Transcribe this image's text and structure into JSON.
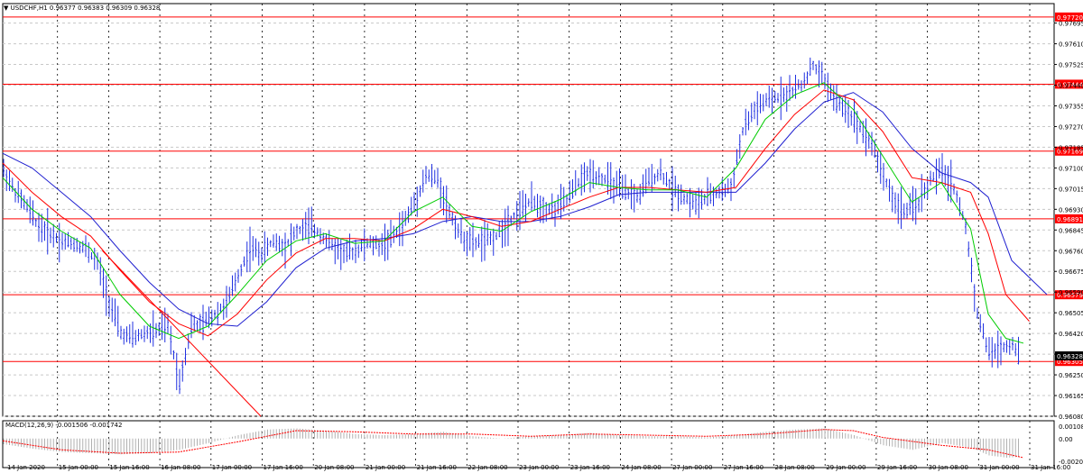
{
  "window": {
    "header_text": "▼ USDCHF,H1  0.96377 0.96383 0.96309 0.96328",
    "macd_header": "MACD(12,26,9) -0.001506 -0.001742"
  },
  "colors": {
    "background": "#ffffff",
    "grid": "#c8c8c8",
    "vgrid_major": "#000000",
    "price_bars": "#2030e0",
    "level_line": "#ff0000",
    "level_label_bg": "#ff0000",
    "ma_fast": "#00cc00",
    "ma_mid": "#ff0000",
    "ma_slow": "#2020d0",
    "current_price_bg": "#000000",
    "macd_hist": "#b0b0b0",
    "macd_signal": "#ff0000"
  },
  "chart_data": {
    "type": "line",
    "symbol": "USDCHF",
    "timeframe": "H1",
    "ylim": [
      0.9608,
      0.97775
    ],
    "y_ticks": [
      "0.97695",
      "0.97610",
      "0.97525",
      "0.97440",
      "0.97355",
      "0.97270",
      "0.97185",
      "0.97100",
      "0.97015",
      "0.96930",
      "0.96845",
      "0.96760",
      "0.96675",
      "0.96590",
      "0.96505",
      "0.96420",
      "0.96335",
      "0.96250",
      "0.96165",
      "0.96080"
    ],
    "x_ticks": [
      "14 Jan 2020",
      "15 Jan 00:00",
      "15 Jan 16:00",
      "16 Jan 08:00",
      "17 Jan 00:00",
      "17 Jan 16:00",
      "20 Jan 08:00",
      "21 Jan 00:00",
      "21 Jan 16:00",
      "22 Jan 08:00",
      "23 Jan 00:00",
      "23 Jan 16:00",
      "24 Jan 08:00",
      "27 Jan 00:00",
      "27 Jan 16:00",
      "28 Jan 08:00",
      "29 Jan 00:00",
      "29 Jan 16:00",
      "30 Jan 08:00",
      "31 Jan 00:00",
      "31 Jan 16:00"
    ],
    "levels": [
      {
        "label": "0.97444",
        "value": 0.97444
      },
      {
        "label": "0.97169",
        "value": 0.97169
      },
      {
        "label": "0.96891",
        "value": 0.96891
      },
      {
        "label": "0.96579",
        "value": 0.96579
      },
      {
        "label": "0.96305",
        "value": 0.96305
      },
      {
        "label": "0.97720",
        "value": 0.9772
      }
    ],
    "current_price": {
      "label": "0.96328",
      "value": 0.96328
    },
    "price_path": [
      [
        0,
        0.9709
      ],
      [
        4,
        0.97
      ],
      [
        8,
        0.9694
      ],
      [
        12,
        0.9686
      ],
      [
        16,
        0.9683
      ],
      [
        20,
        0.968
      ],
      [
        24,
        0.9679
      ],
      [
        28,
        0.9677
      ],
      [
        32,
        0.9671
      ],
      [
        36,
        0.9655
      ],
      [
        40,
        0.9642
      ],
      [
        44,
        0.964
      ],
      [
        48,
        0.9642
      ],
      [
        52,
        0.9643
      ],
      [
        56,
        0.9645
      ],
      [
        60,
        0.9622
      ],
      [
        64,
        0.9645
      ],
      [
        68,
        0.9646
      ],
      [
        72,
        0.965
      ],
      [
        76,
        0.9654
      ],
      [
        80,
        0.9666
      ],
      [
        84,
        0.9677
      ],
      [
        88,
        0.9675
      ],
      [
        92,
        0.968
      ],
      [
        96,
        0.9678
      ],
      [
        100,
        0.9684
      ],
      [
        104,
        0.9686
      ],
      [
        108,
        0.9683
      ],
      [
        112,
        0.9678
      ],
      [
        116,
        0.9675
      ],
      [
        120,
        0.9676
      ],
      [
        124,
        0.9679
      ],
      [
        128,
        0.9678
      ],
      [
        132,
        0.9681
      ],
      [
        136,
        0.9686
      ],
      [
        140,
        0.9696
      ],
      [
        144,
        0.9707
      ],
      [
        148,
        0.9705
      ],
      [
        152,
        0.9692
      ],
      [
        156,
        0.9682
      ],
      [
        160,
        0.9679
      ],
      [
        164,
        0.968
      ],
      [
        168,
        0.9682
      ],
      [
        172,
        0.9688
      ],
      [
        176,
        0.9693
      ],
      [
        180,
        0.9696
      ],
      [
        184,
        0.9694
      ],
      [
        188,
        0.9693
      ],
      [
        192,
        0.9697
      ],
      [
        196,
        0.9704
      ],
      [
        200,
        0.9708
      ],
      [
        204,
        0.9706
      ],
      [
        208,
        0.9703
      ],
      [
        212,
        0.97
      ],
      [
        216,
        0.9698
      ],
      [
        220,
        0.9705
      ],
      [
        224,
        0.9708
      ],
      [
        228,
        0.9702
      ],
      [
        232,
        0.9698
      ],
      [
        236,
        0.9695
      ],
      [
        240,
        0.9698
      ],
      [
        244,
        0.97
      ],
      [
        248,
        0.9702
      ],
      [
        252,
        0.9725
      ],
      [
        256,
        0.9734
      ],
      [
        260,
        0.9737
      ],
      [
        264,
        0.9739
      ],
      [
        268,
        0.9741
      ],
      [
        272,
        0.9744
      ],
      [
        276,
        0.9752
      ],
      [
        280,
        0.9746
      ],
      [
        284,
        0.9737
      ],
      [
        288,
        0.9733
      ],
      [
        292,
        0.9727
      ],
      [
        296,
        0.972
      ],
      [
        300,
        0.9707
      ],
      [
        304,
        0.9695
      ],
      [
        308,
        0.9692
      ],
      [
        312,
        0.9696
      ],
      [
        316,
        0.9705
      ],
      [
        320,
        0.9709
      ],
      [
        324,
        0.9702
      ],
      [
        328,
        0.9686
      ],
      [
        332,
        0.965
      ],
      [
        336,
        0.9634
      ],
      [
        340,
        0.9636
      ],
      [
        344,
        0.9638
      ],
      [
        346,
        0.9633
      ]
    ],
    "ma_fast_path": [
      [
        0,
        0.9706
      ],
      [
        10,
        0.9693
      ],
      [
        20,
        0.9684
      ],
      [
        30,
        0.9677
      ],
      [
        40,
        0.9658
      ],
      [
        50,
        0.9645
      ],
      [
        60,
        0.964
      ],
      [
        70,
        0.9645
      ],
      [
        80,
        0.9658
      ],
      [
        90,
        0.9672
      ],
      [
        100,
        0.968
      ],
      [
        110,
        0.9683
      ],
      [
        120,
        0.9679
      ],
      [
        130,
        0.968
      ],
      [
        140,
        0.9692
      ],
      [
        150,
        0.9698
      ],
      [
        160,
        0.9686
      ],
      [
        170,
        0.9684
      ],
      [
        180,
        0.9692
      ],
      [
        190,
        0.9697
      ],
      [
        200,
        0.9704
      ],
      [
        210,
        0.9702
      ],
      [
        220,
        0.9701
      ],
      [
        230,
        0.9701
      ],
      [
        240,
        0.9698
      ],
      [
        250,
        0.971
      ],
      [
        260,
        0.973
      ],
      [
        270,
        0.974
      ],
      [
        280,
        0.9745
      ],
      [
        290,
        0.9734
      ],
      [
        300,
        0.9715
      ],
      [
        310,
        0.9696
      ],
      [
        320,
        0.9704
      ],
      [
        330,
        0.9685
      ],
      [
        336,
        0.965
      ],
      [
        342,
        0.964
      ],
      [
        348,
        0.9638
      ]
    ],
    "ma_mid_path": [
      [
        0,
        0.9712
      ],
      [
        10,
        0.97
      ],
      [
        20,
        0.969
      ],
      [
        30,
        0.9682
      ],
      [
        40,
        0.9668
      ],
      [
        50,
        0.9655
      ],
      [
        60,
        0.9646
      ],
      [
        70,
        0.9641
      ],
      [
        80,
        0.965
      ],
      [
        90,
        0.9664
      ],
      [
        100,
        0.9675
      ],
      [
        110,
        0.9681
      ],
      [
        120,
        0.9681
      ],
      [
        130,
        0.968
      ],
      [
        140,
        0.9685
      ],
      [
        150,
        0.9693
      ],
      [
        160,
        0.969
      ],
      [
        170,
        0.9686
      ],
      [
        180,
        0.9688
      ],
      [
        190,
        0.9693
      ],
      [
        200,
        0.9698
      ],
      [
        210,
        0.9702
      ],
      [
        220,
        0.9702
      ],
      [
        230,
        0.9701
      ],
      [
        240,
        0.97
      ],
      [
        250,
        0.9702
      ],
      [
        260,
        0.9718
      ],
      [
        270,
        0.9732
      ],
      [
        280,
        0.9742
      ],
      [
        290,
        0.9738
      ],
      [
        300,
        0.9725
      ],
      [
        310,
        0.9706
      ],
      [
        320,
        0.9704
      ],
      [
        330,
        0.97
      ],
      [
        336,
        0.9683
      ],
      [
        342,
        0.9658
      ],
      [
        350,
        0.9647
      ]
    ],
    "ma_slow_path": [
      [
        0,
        0.9716
      ],
      [
        10,
        0.971
      ],
      [
        20,
        0.97
      ],
      [
        30,
        0.969
      ],
      [
        40,
        0.9676
      ],
      [
        50,
        0.9663
      ],
      [
        60,
        0.9652
      ],
      [
        70,
        0.9646
      ],
      [
        80,
        0.9645
      ],
      [
        90,
        0.9655
      ],
      [
        100,
        0.9669
      ],
      [
        110,
        0.9677
      ],
      [
        120,
        0.968
      ],
      [
        130,
        0.9681
      ],
      [
        140,
        0.9683
      ],
      [
        150,
        0.9688
      ],
      [
        160,
        0.969
      ],
      [
        170,
        0.9688
      ],
      [
        180,
        0.9688
      ],
      [
        190,
        0.969
      ],
      [
        200,
        0.9694
      ],
      [
        210,
        0.9699
      ],
      [
        220,
        0.97
      ],
      [
        230,
        0.97
      ],
      [
        240,
        0.97
      ],
      [
        250,
        0.97
      ],
      [
        260,
        0.9712
      ],
      [
        270,
        0.9726
      ],
      [
        280,
        0.9737
      ],
      [
        290,
        0.9741
      ],
      [
        300,
        0.9733
      ],
      [
        310,
        0.9718
      ],
      [
        320,
        0.9708
      ],
      [
        330,
        0.9704
      ],
      [
        336,
        0.9698
      ],
      [
        344,
        0.9672
      ],
      [
        356,
        0.9658
      ]
    ],
    "trendline": [
      [
        34,
        0.9676
      ],
      [
        88,
        0.9608
      ]
    ],
    "macd": {
      "ylim": [
        -0.0025,
        0.0015
      ],
      "y_ticks": [
        "0.001083",
        "0.00",
        "-0.0020"
      ],
      "histogram": [
        [
          0,
          -0.0005
        ],
        [
          10,
          -0.0009
        ],
        [
          20,
          -0.0012
        ],
        [
          30,
          -0.0013
        ],
        [
          40,
          -0.0014
        ],
        [
          50,
          -0.0013
        ],
        [
          60,
          -0.001
        ],
        [
          70,
          -0.0004
        ],
        [
          80,
          0.0003
        ],
        [
          90,
          0.0008
        ],
        [
          100,
          0.0009
        ],
        [
          110,
          0.0007
        ],
        [
          120,
          0.0004
        ],
        [
          130,
          0.0003
        ],
        [
          140,
          0.0004
        ],
        [
          150,
          0.0006
        ],
        [
          160,
          0.0002
        ],
        [
          170,
          0.0
        ],
        [
          180,
          0.0002
        ],
        [
          190,
          0.0003
        ],
        [
          200,
          0.0005
        ],
        [
          210,
          0.0003
        ],
        [
          220,
          0.0002
        ],
        [
          230,
          0.0002
        ],
        [
          240,
          0.0001
        ],
        [
          250,
          0.0003
        ],
        [
          260,
          0.0006
        ],
        [
          270,
          0.0008
        ],
        [
          280,
          0.0009
        ],
        [
          290,
          0.0003
        ],
        [
          300,
          -0.0006
        ],
        [
          310,
          -0.001
        ],
        [
          320,
          -0.0004
        ],
        [
          330,
          -0.0008
        ],
        [
          336,
          -0.0015
        ],
        [
          342,
          -0.0017
        ],
        [
          348,
          -0.0016
        ]
      ],
      "signal": [
        [
          0,
          -0.0002
        ],
        [
          20,
          -0.001
        ],
        [
          40,
          -0.0013
        ],
        [
          60,
          -0.0012
        ],
        [
          80,
          -0.0003
        ],
        [
          100,
          0.0007
        ],
        [
          120,
          0.0006
        ],
        [
          140,
          0.0004
        ],
        [
          160,
          0.0004
        ],
        [
          180,
          0.0002
        ],
        [
          200,
          0.0004
        ],
        [
          220,
          0.0003
        ],
        [
          240,
          0.0002
        ],
        [
          260,
          0.0004
        ],
        [
          280,
          0.0008
        ],
        [
          290,
          0.0007
        ],
        [
          300,
          0.0001
        ],
        [
          320,
          -0.0006
        ],
        [
          336,
          -0.001
        ],
        [
          348,
          -0.0017
        ]
      ]
    }
  }
}
